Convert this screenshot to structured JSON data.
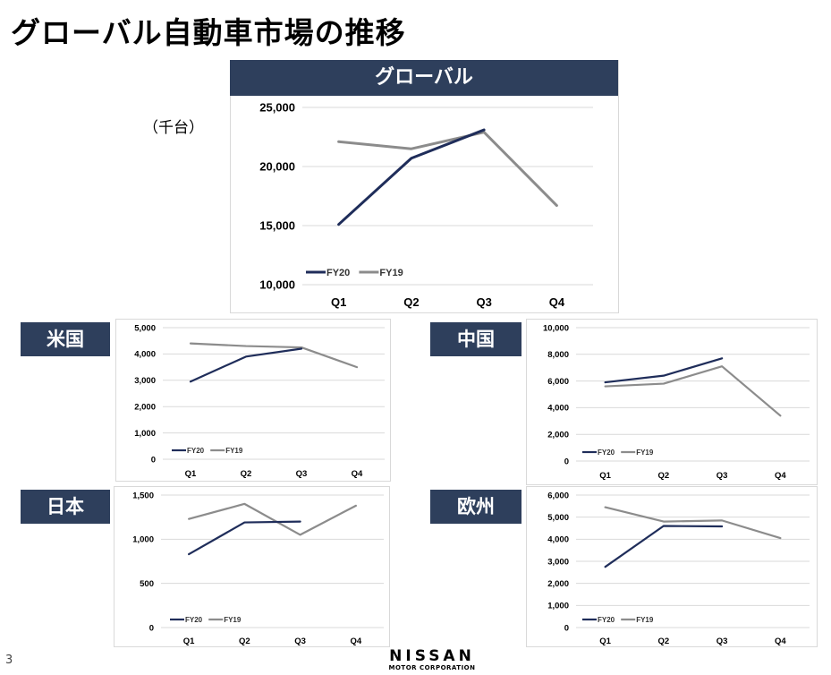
{
  "page": {
    "title": "グローバル自動車市場の推移",
    "slide_number": "3",
    "logo_main": "NISSAN",
    "logo_sub": "MOTOR CORPORATION",
    "unit_label": "（千台）"
  },
  "colors": {
    "fy20": "#1f2d5a",
    "fy19": "#8c8c8c",
    "banner": "#2e3f5c"
  },
  "chart_data": [
    {
      "id": "global",
      "type": "line",
      "title": "グローバル",
      "categories": [
        "Q1",
        "Q2",
        "Q3",
        "Q4"
      ],
      "ylim": [
        10000,
        25000
      ],
      "yticks": [
        "10,000",
        "15,000",
        "20,000",
        "25,000"
      ],
      "ytick_values": [
        10000,
        15000,
        20000,
        25000
      ],
      "series": [
        {
          "name": "FY20",
          "values": [
            15100,
            20700,
            23100,
            null
          ]
        },
        {
          "name": "FY19",
          "values": [
            22100,
            21500,
            22900,
            16700
          ]
        }
      ]
    },
    {
      "id": "us",
      "type": "line",
      "title": "米国",
      "categories": [
        "Q1",
        "Q2",
        "Q3",
        "Q4"
      ],
      "ylim": [
        0,
        5000
      ],
      "yticks": [
        "0",
        "1,000",
        "2,000",
        "3,000",
        "4,000",
        "5,000"
      ],
      "ytick_values": [
        0,
        1000,
        2000,
        3000,
        4000,
        5000
      ],
      "series": [
        {
          "name": "FY20",
          "values": [
            2950,
            3900,
            4200,
            null
          ]
        },
        {
          "name": "FY19",
          "values": [
            4400,
            4300,
            4250,
            3500
          ]
        }
      ]
    },
    {
      "id": "china",
      "type": "line",
      "title": "中国",
      "categories": [
        "Q1",
        "Q2",
        "Q3",
        "Q4"
      ],
      "ylim": [
        0,
        10000
      ],
      "yticks": [
        "0",
        "2,000",
        "4,000",
        "6,000",
        "8,000",
        "10,000"
      ],
      "ytick_values": [
        0,
        2000,
        4000,
        6000,
        8000,
        10000
      ],
      "series": [
        {
          "name": "FY20",
          "values": [
            5900,
            6400,
            7700,
            null
          ]
        },
        {
          "name": "FY19",
          "values": [
            5600,
            5800,
            7100,
            3400
          ]
        }
      ]
    },
    {
      "id": "japan",
      "type": "line",
      "title": "日本",
      "categories": [
        "Q1",
        "Q2",
        "Q3",
        "Q4"
      ],
      "ylim": [
        0,
        1500
      ],
      "yticks": [
        "0",
        "500",
        "1,000",
        "1,500"
      ],
      "ytick_values": [
        0,
        500,
        1000,
        1500
      ],
      "series": [
        {
          "name": "FY20",
          "values": [
            830,
            1190,
            1200,
            null
          ]
        },
        {
          "name": "FY19",
          "values": [
            1230,
            1400,
            1050,
            1380
          ]
        }
      ]
    },
    {
      "id": "europe",
      "type": "line",
      "title": "欧州",
      "categories": [
        "Q1",
        "Q2",
        "Q3",
        "Q4"
      ],
      "ylim": [
        0,
        6000
      ],
      "yticks": [
        "0",
        "1,000",
        "2,000",
        "3,000",
        "4,000",
        "5,000",
        "6,000"
      ],
      "ytick_values": [
        0,
        1000,
        2000,
        3000,
        4000,
        5000,
        6000
      ],
      "series": [
        {
          "name": "FY20",
          "values": [
            2750,
            4600,
            4580,
            null
          ]
        },
        {
          "name": "FY19",
          "values": [
            5450,
            4800,
            4850,
            4050
          ]
        }
      ]
    }
  ]
}
